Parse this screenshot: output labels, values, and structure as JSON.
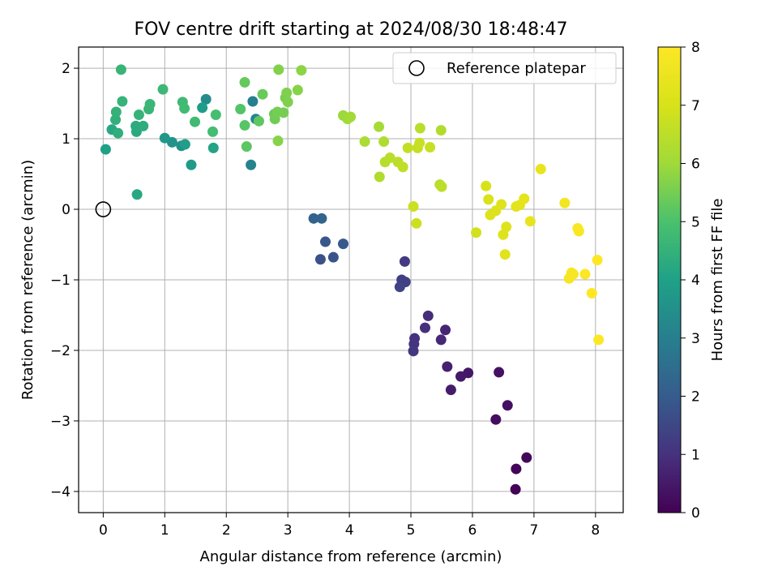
{
  "chart_data": {
    "type": "scatter",
    "title": "FOV centre drift starting at 2024/08/30 18:48:47",
    "xlabel": "Angular distance from reference (arcmin)",
    "ylabel": "Rotation from reference (arcmin)",
    "xlim": [
      -0.4,
      8.45
    ],
    "ylim": [
      -4.3,
      2.3
    ],
    "xticks": [
      0,
      1,
      2,
      3,
      4,
      5,
      6,
      7,
      8
    ],
    "xtick_labels": [
      "0",
      "1",
      "2",
      "3",
      "4",
      "5",
      "6",
      "7",
      "8"
    ],
    "yticks": [
      -4,
      -3,
      -2,
      -1,
      0,
      1,
      2
    ],
    "ytick_labels": [
      "−4",
      "−3",
      "−2",
      "−1",
      "0",
      "1",
      "2"
    ],
    "grid": true,
    "legend": {
      "position": "upper-right",
      "label": "Reference platepar"
    },
    "reference_point": {
      "x": 0,
      "y": 0
    },
    "colorbar": {
      "label": "Hours from first FF file",
      "min": 0,
      "max": 8,
      "ticks": [
        0,
        1,
        2,
        3,
        4,
        5,
        6,
        7,
        8
      ],
      "tick_labels": [
        "0",
        "1",
        "2",
        "3",
        "4",
        "5",
        "6",
        "7",
        "8"
      ],
      "colormap": "viridis"
    },
    "points": [
      {
        "x": 6.7,
        "y": -3.97,
        "h": 0.05
      },
      {
        "x": 6.71,
        "y": -3.68,
        "h": 0.1
      },
      {
        "x": 6.88,
        "y": -3.52,
        "h": 0.15
      },
      {
        "x": 6.38,
        "y": -2.98,
        "h": 0.25
      },
      {
        "x": 6.57,
        "y": -2.78,
        "h": 0.3
      },
      {
        "x": 6.43,
        "y": -2.31,
        "h": 0.35
      },
      {
        "x": 5.93,
        "y": -2.32,
        "h": 0.45
      },
      {
        "x": 5.81,
        "y": -2.37,
        "h": 0.5
      },
      {
        "x": 5.65,
        "y": -2.56,
        "h": 0.55
      },
      {
        "x": 5.59,
        "y": -2.23,
        "h": 0.65
      },
      {
        "x": 5.56,
        "y": -1.71,
        "h": 0.75
      },
      {
        "x": 5.49,
        "y": -1.85,
        "h": 0.8
      },
      {
        "x": 5.28,
        "y": -1.51,
        "h": 0.9
      },
      {
        "x": 5.23,
        "y": -1.68,
        "h": 0.95
      },
      {
        "x": 5.06,
        "y": -1.83,
        "h": 1.0
      },
      {
        "x": 5.05,
        "y": -1.91,
        "h": 1.05
      },
      {
        "x": 5.04,
        "y": -2.01,
        "h": 1.1
      },
      {
        "x": 4.9,
        "y": -0.74,
        "h": 1.2
      },
      {
        "x": 4.85,
        "y": -1.0,
        "h": 1.3
      },
      {
        "x": 4.91,
        "y": -1.03,
        "h": 1.35
      },
      {
        "x": 4.82,
        "y": -1.1,
        "h": 1.4
      },
      {
        "x": 3.53,
        "y": -0.71,
        "h": 1.75
      },
      {
        "x": 3.74,
        "y": -0.68,
        "h": 1.8
      },
      {
        "x": 3.61,
        "y": -0.46,
        "h": 1.9
      },
      {
        "x": 3.9,
        "y": -0.49,
        "h": 1.95
      },
      {
        "x": 3.42,
        "y": -0.13,
        "h": 2.2
      },
      {
        "x": 3.55,
        "y": -0.13,
        "h": 2.25
      },
      {
        "x": 2.4,
        "y": 0.63,
        "h": 3.1
      },
      {
        "x": 2.43,
        "y": 1.53,
        "h": 3.0
      },
      {
        "x": 2.48,
        "y": 1.28,
        "h": 3.2
      },
      {
        "x": 1.67,
        "y": 1.56,
        "h": 3.4
      },
      {
        "x": 1.27,
        "y": 0.9,
        "h": 3.5
      },
      {
        "x": 1.12,
        "y": 0.95,
        "h": 3.6
      },
      {
        "x": 1.0,
        "y": 1.01,
        "h": 3.7
      },
      {
        "x": 1.43,
        "y": 0.63,
        "h": 3.8
      },
      {
        "x": 1.33,
        "y": 0.92,
        "h": 3.9
      },
      {
        "x": 1.61,
        "y": 1.44,
        "h": 3.85
      },
      {
        "x": 1.79,
        "y": 0.87,
        "h": 4.1
      },
      {
        "x": 0.04,
        "y": 0.85,
        "h": 4.0
      },
      {
        "x": 0.55,
        "y": 0.21,
        "h": 4.2
      },
      {
        "x": 0.54,
        "y": 1.1,
        "h": 4.25
      },
      {
        "x": 0.53,
        "y": 1.18,
        "h": 4.3
      },
      {
        "x": 0.65,
        "y": 1.18,
        "h": 4.35
      },
      {
        "x": 0.14,
        "y": 1.13,
        "h": 4.2
      },
      {
        "x": 0.24,
        "y": 1.08,
        "h": 4.4
      },
      {
        "x": 0.2,
        "y": 1.27,
        "h": 4.45
      },
      {
        "x": 0.21,
        "y": 1.38,
        "h": 4.5
      },
      {
        "x": 0.31,
        "y": 1.53,
        "h": 4.55
      },
      {
        "x": 0.29,
        "y": 1.98,
        "h": 4.6
      },
      {
        "x": 0.58,
        "y": 1.34,
        "h": 4.55
      },
      {
        "x": 0.74,
        "y": 1.42,
        "h": 4.6
      },
      {
        "x": 0.76,
        "y": 1.49,
        "h": 4.65
      },
      {
        "x": 0.97,
        "y": 1.7,
        "h": 4.7
      },
      {
        "x": 1.29,
        "y": 1.52,
        "h": 4.75
      },
      {
        "x": 1.32,
        "y": 1.43,
        "h": 4.8
      },
      {
        "x": 1.49,
        "y": 1.24,
        "h": 4.8
      },
      {
        "x": 1.78,
        "y": 1.1,
        "h": 4.85
      },
      {
        "x": 1.83,
        "y": 1.34,
        "h": 4.9
      },
      {
        "x": 2.23,
        "y": 1.42,
        "h": 5.1
      },
      {
        "x": 2.3,
        "y": 1.19,
        "h": 5.15
      },
      {
        "x": 2.33,
        "y": 0.89,
        "h": 5.2
      },
      {
        "x": 2.53,
        "y": 1.25,
        "h": 5.25
      },
      {
        "x": 2.3,
        "y": 1.8,
        "h": 5.3
      },
      {
        "x": 2.59,
        "y": 1.63,
        "h": 5.35
      },
      {
        "x": 2.78,
        "y": 1.35,
        "h": 5.4
      },
      {
        "x": 2.79,
        "y": 1.28,
        "h": 5.45
      },
      {
        "x": 2.83,
        "y": 1.38,
        "h": 5.5
      },
      {
        "x": 2.93,
        "y": 1.37,
        "h": 5.5
      },
      {
        "x": 2.96,
        "y": 1.58,
        "h": 5.55
      },
      {
        "x": 2.98,
        "y": 1.65,
        "h": 5.6
      },
      {
        "x": 3.0,
        "y": 1.52,
        "h": 5.6
      },
      {
        "x": 2.85,
        "y": 1.98,
        "h": 5.65
      },
      {
        "x": 2.84,
        "y": 0.97,
        "h": 5.7
      },
      {
        "x": 3.16,
        "y": 1.69,
        "h": 5.7
      },
      {
        "x": 3.22,
        "y": 1.97,
        "h": 5.75
      },
      {
        "x": 3.9,
        "y": 1.33,
        "h": 5.95
      },
      {
        "x": 3.97,
        "y": 1.28,
        "h": 6.0
      },
      {
        "x": 4.02,
        "y": 1.31,
        "h": 6.05
      },
      {
        "x": 4.48,
        "y": 1.17,
        "h": 6.1
      },
      {
        "x": 4.25,
        "y": 0.96,
        "h": 6.2
      },
      {
        "x": 4.56,
        "y": 0.96,
        "h": 6.25
      },
      {
        "x": 4.49,
        "y": 0.46,
        "h": 6.3
      },
      {
        "x": 4.58,
        "y": 0.67,
        "h": 6.4
      },
      {
        "x": 4.66,
        "y": 0.73,
        "h": 6.45
      },
      {
        "x": 4.79,
        "y": 0.67,
        "h": 6.5
      },
      {
        "x": 4.87,
        "y": 0.6,
        "h": 6.55
      },
      {
        "x": 4.95,
        "y": 0.87,
        "h": 6.6
      },
      {
        "x": 5.11,
        "y": 0.87,
        "h": 6.65
      },
      {
        "x": 5.14,
        "y": 0.94,
        "h": 6.7
      },
      {
        "x": 5.15,
        "y": 1.15,
        "h": 6.45
      },
      {
        "x": 5.31,
        "y": 0.88,
        "h": 6.7
      },
      {
        "x": 5.49,
        "y": 1.12,
        "h": 6.3
      },
      {
        "x": 5.47,
        "y": 0.35,
        "h": 6.45
      },
      {
        "x": 5.5,
        "y": 0.32,
        "h": 6.5
      },
      {
        "x": 5.04,
        "y": 0.04,
        "h": 6.75
      },
      {
        "x": 5.09,
        "y": -0.2,
        "h": 6.8
      },
      {
        "x": 6.06,
        "y": -0.33,
        "h": 6.9
      },
      {
        "x": 6.22,
        "y": 0.33,
        "h": 7.0
      },
      {
        "x": 6.26,
        "y": 0.14,
        "h": 7.05
      },
      {
        "x": 6.29,
        "y": -0.08,
        "h": 7.1
      },
      {
        "x": 6.38,
        "y": -0.02,
        "h": 7.1
      },
      {
        "x": 6.47,
        "y": 0.07,
        "h": 7.15
      },
      {
        "x": 6.5,
        "y": -0.36,
        "h": 7.2
      },
      {
        "x": 6.55,
        "y": -0.25,
        "h": 7.2
      },
      {
        "x": 6.53,
        "y": -0.64,
        "h": 7.25
      },
      {
        "x": 6.71,
        "y": 0.04,
        "h": 7.3
      },
      {
        "x": 6.77,
        "y": 0.06,
        "h": 7.3
      },
      {
        "x": 6.84,
        "y": 0.15,
        "h": 7.35
      },
      {
        "x": 6.94,
        "y": -0.17,
        "h": 7.4
      },
      {
        "x": 7.11,
        "y": 0.57,
        "h": 7.45
      },
      {
        "x": 7.5,
        "y": 0.09,
        "h": 7.7
      },
      {
        "x": 7.57,
        "y": -0.98,
        "h": 7.8
      },
      {
        "x": 7.61,
        "y": -0.9,
        "h": 7.85
      },
      {
        "x": 7.64,
        "y": -0.92,
        "h": 7.85
      },
      {
        "x": 7.71,
        "y": -0.27,
        "h": 7.9
      },
      {
        "x": 7.73,
        "y": -0.31,
        "h": 7.9
      },
      {
        "x": 7.83,
        "y": -0.92,
        "h": 7.95
      },
      {
        "x": 7.94,
        "y": -1.19,
        "h": 8.0
      },
      {
        "x": 8.03,
        "y": -0.72,
        "h": 8.0
      },
      {
        "x": 8.05,
        "y": -1.85,
        "h": 8.0
      }
    ]
  }
}
